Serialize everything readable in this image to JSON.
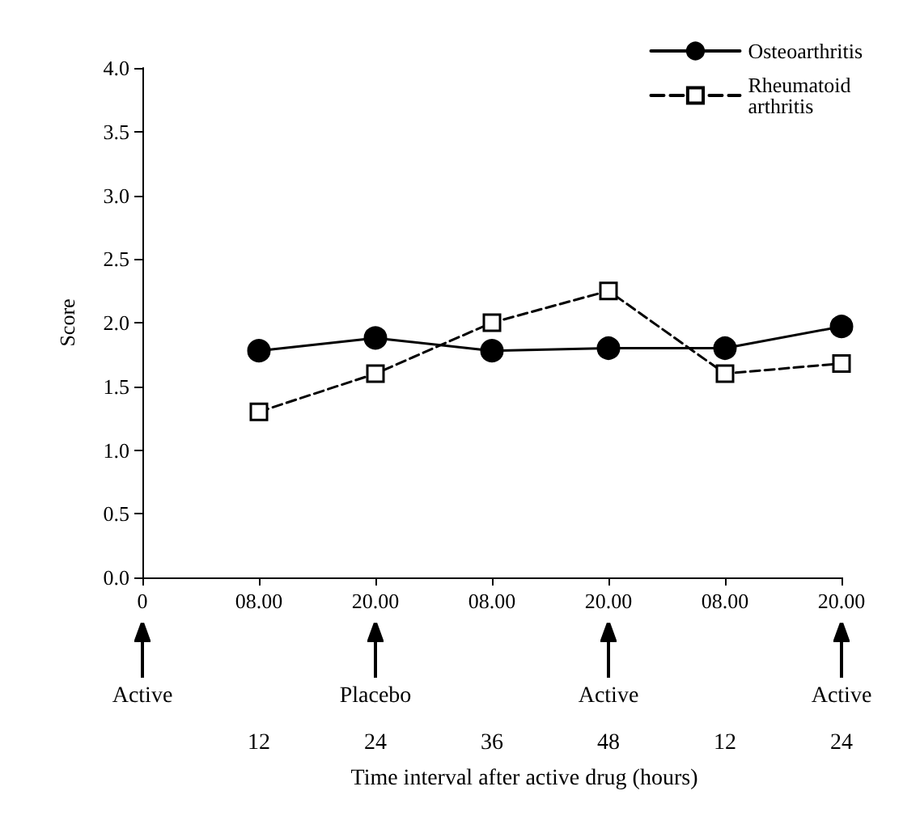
{
  "chart_data": {
    "type": "line",
    "ylabel": "Score",
    "categories": [
      "0",
      "08.00",
      "20.00",
      "08.00",
      "20.00",
      "08.00",
      "20.00"
    ],
    "ylim": [
      0,
      4
    ],
    "yticks": [
      {
        "value": 0,
        "label": "0.0"
      },
      {
        "value": 0.5,
        "label": "0.5"
      },
      {
        "value": 1,
        "label": "1.0"
      },
      {
        "value": 1.5,
        "label": "1.5"
      },
      {
        "value": 2,
        "label": "2.0"
      },
      {
        "value": 2.5,
        "label": "2.5"
      },
      {
        "value": 3,
        "label": "3.0"
      },
      {
        "value": 3.5,
        "label": "3.5"
      },
      {
        "value": 4,
        "label": "4.0"
      }
    ],
    "series": [
      {
        "name": "Osteoarthritis",
        "color": "#000000",
        "marker": "circle",
        "line_style": "solid",
        "values": [
          null,
          1.78,
          1.88,
          1.78,
          1.8,
          1.8,
          1.97
        ]
      },
      {
        "name": "Rheumatoid arthritis",
        "color": "#000000",
        "marker": "square",
        "line_style": "dashed",
        "values": [
          null,
          1.3,
          1.6,
          2.0,
          2.25,
          1.6,
          1.68
        ]
      }
    ],
    "annotations": [
      "Active",
      "Placebo",
      "Active",
      "Active",
      "12",
      "24",
      "36",
      "48",
      "12",
      "24",
      "Time interval after active drug (hours)"
    ],
    "legend": "top right",
    "grid": false
  }
}
